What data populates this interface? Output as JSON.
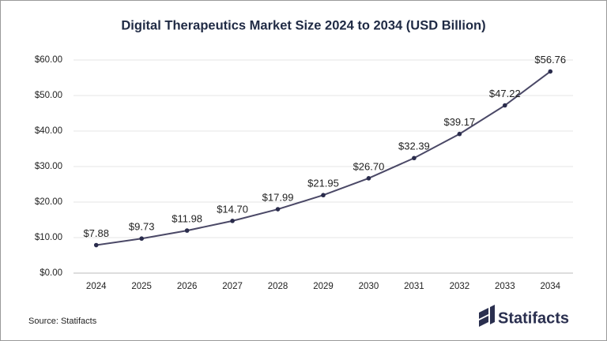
{
  "chart_data": {
    "type": "line",
    "title": "Digital Therapeutics Market Size 2024 to 2034 (USD Billion)",
    "categories": [
      "2024",
      "2025",
      "2026",
      "2027",
      "2028",
      "2029",
      "2030",
      "2031",
      "2032",
      "2033",
      "2034"
    ],
    "values": [
      7.88,
      9.73,
      11.98,
      14.7,
      17.99,
      21.95,
      26.7,
      32.39,
      39.17,
      47.22,
      56.76
    ],
    "value_labels": [
      "$7.88",
      "$9.73",
      "$11.98",
      "$14.70",
      "$17.99",
      "$21.95",
      "$26.70",
      "$32.39",
      "$39.17",
      "$47.22",
      "$56.76"
    ],
    "color": "#4a4866",
    "marker_color": "#2a2c4c",
    "ylim": [
      0,
      60
    ],
    "yticks": [
      {
        "value": 0,
        "label": "$0.00"
      },
      {
        "value": 10,
        "label": "$10.00"
      },
      {
        "value": 20,
        "label": "$20.00"
      },
      {
        "value": 30,
        "label": "$30.00"
      },
      {
        "value": 40,
        "label": "$40.00"
      },
      {
        "value": 50,
        "label": "$50.00"
      },
      {
        "value": 60,
        "label": "$60.00"
      }
    ],
    "grid": true,
    "source": "Source: Statifacts",
    "brand": "Statifacts"
  }
}
